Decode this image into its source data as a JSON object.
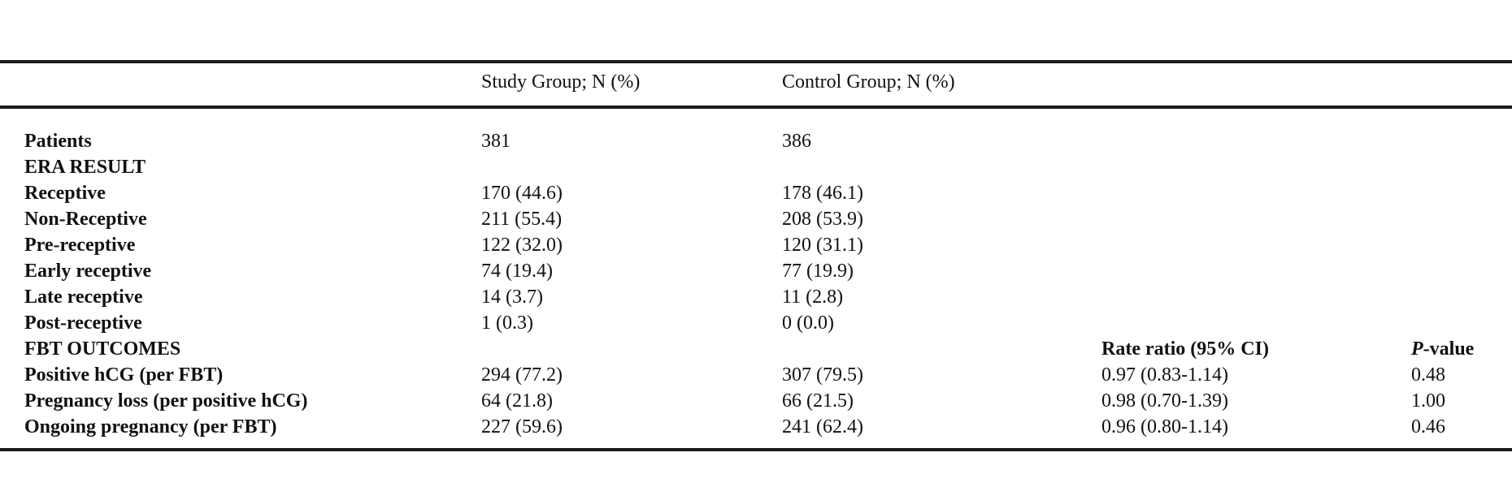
{
  "header": {
    "study_group": "Study Group; N (%)",
    "control_group": "Control Group; N (%)"
  },
  "rows": [
    {
      "label": "Patients",
      "study": "381",
      "control": "386",
      "ratio": "",
      "pval": ""
    },
    {
      "label": "ERA RESULT",
      "study": "",
      "control": "",
      "ratio": "",
      "pval": ""
    },
    {
      "label": "Receptive",
      "study": "170 (44.6)",
      "control": "178 (46.1)",
      "ratio": "",
      "pval": ""
    },
    {
      "label": "Non-Receptive",
      "study": "211 (55.4)",
      "control": "208 (53.9)",
      "ratio": "",
      "pval": ""
    },
    {
      "label": "Pre-receptive",
      "study": "122 (32.0)",
      "control": "120 (31.1)",
      "ratio": "",
      "pval": ""
    },
    {
      "label": "Early receptive",
      "study": "74 (19.4)",
      "control": "77 (19.9)",
      "ratio": "",
      "pval": ""
    },
    {
      "label": "Late receptive",
      "study": "14 (3.7)",
      "control": "11 (2.8)",
      "ratio": "",
      "pval": ""
    },
    {
      "label": "Post-receptive",
      "study": "1 (0.3)",
      "control": "0 (0.0)",
      "ratio": "",
      "pval": ""
    },
    {
      "label": "FBT OUTCOMES",
      "study": "",
      "control": "",
      "ratio": "Rate ratio (95% CI)",
      "pval_italic": "P",
      "pval": "-value"
    },
    {
      "label": "Positive hCG (per FBT)",
      "study": "294 (77.2)",
      "control": "307 (79.5)",
      "ratio": "0.97 (0.83-1.14)",
      "pval": "0.48"
    },
    {
      "label": "Pregnancy loss (per positive hCG)",
      "study": "64 (21.8)",
      "control": "66 (21.5)",
      "ratio": "0.98 (0.70-1.39)",
      "pval": "1.00"
    },
    {
      "label": "Ongoing pregnancy (per FBT)",
      "study": "227 (59.6)",
      "control": "241 (62.4)",
      "ratio": "0.96 (0.80-1.14)",
      "pval": "0.46"
    }
  ]
}
